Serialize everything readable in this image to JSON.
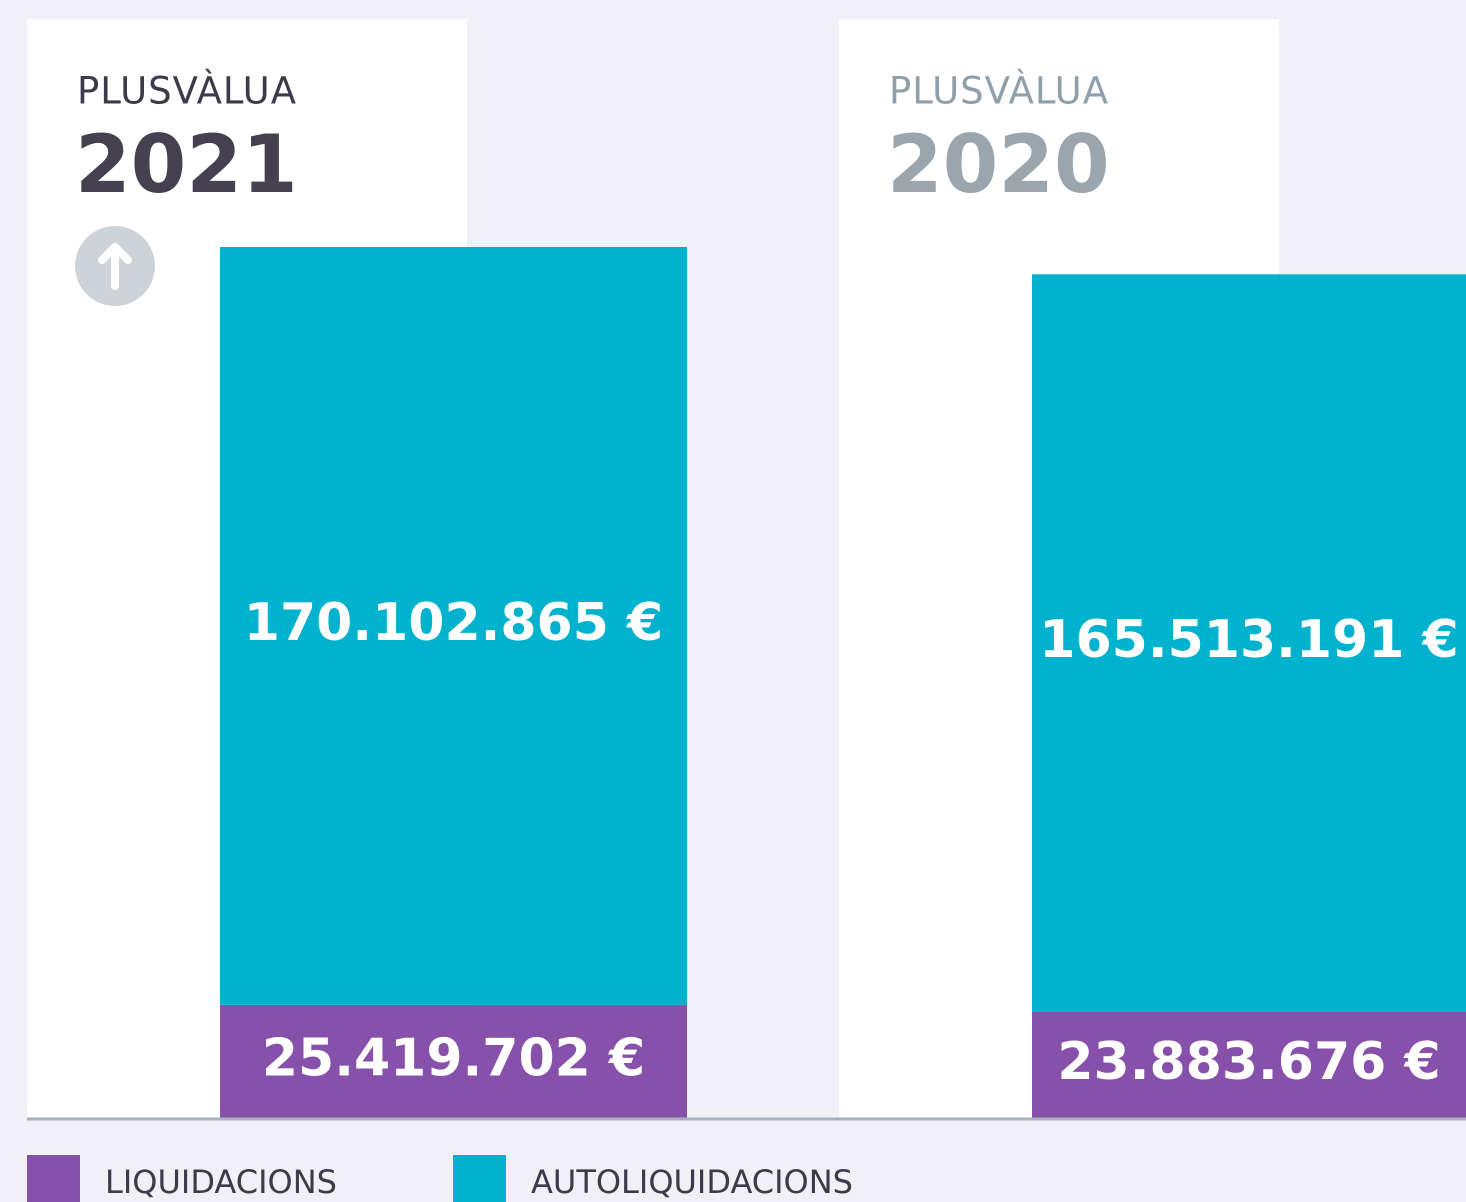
{
  "chart_data": {
    "type": "bar",
    "stacked": true,
    "title": "PLUSVÀLUA",
    "categories": [
      "2021",
      "2020"
    ],
    "series": [
      {
        "name": "LIQUIDACIONS",
        "color": "#8751ab",
        "values": [
          25419702,
          23883676
        ],
        "value_labels": [
          "25.419.702 €",
          "23.883.676 €"
        ]
      },
      {
        "name": "AUTOLIQUIDACIONS",
        "color": "#00b2cd",
        "values": [
          170102865,
          165513191
        ],
        "value_labels": [
          "170.102.865 €",
          "165.513.191 €"
        ]
      }
    ]
  }
}
